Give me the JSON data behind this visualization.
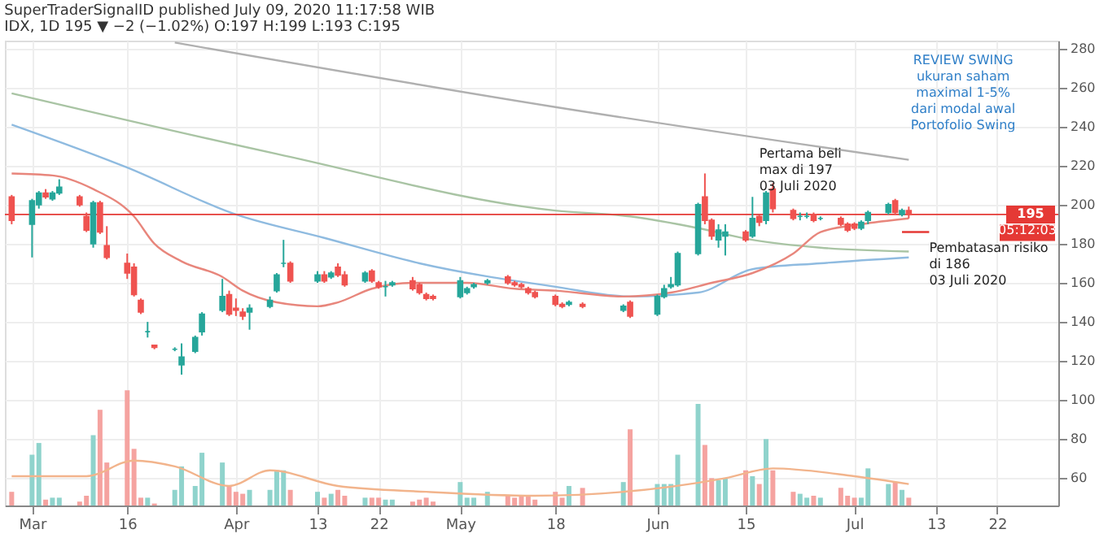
{
  "chart_data": {
    "type": "candlestick",
    "title": "SuperTraderSignalID published July 09, 2020 11:17:58 WIB",
    "subtitle": "IDX, 1D 195 ▼ −2 (−1.02%) O:197 H:199 L:193 C:195",
    "x": [
      "2020-02-28",
      "2020-03-02",
      "2020-03-03",
      "2020-03-04",
      "2020-03-05",
      "2020-03-06",
      "2020-03-09",
      "2020-03-10",
      "2020-03-11",
      "2020-03-12",
      "2020-03-13",
      "2020-03-16",
      "2020-03-17",
      "2020-03-18",
      "2020-03-19",
      "2020-03-20",
      "2020-03-23",
      "2020-03-24",
      "2020-03-26",
      "2020-03-27",
      "2020-03-30",
      "2020-03-31",
      "2020-04-01",
      "2020-04-02",
      "2020-04-03",
      "2020-04-06",
      "2020-04-07",
      "2020-04-08",
      "2020-04-09",
      "2020-04-13",
      "2020-04-14",
      "2020-04-15",
      "2020-04-16",
      "2020-04-17",
      "2020-04-20",
      "2020-04-21",
      "2020-04-22",
      "2020-04-23",
      "2020-04-24",
      "2020-04-27",
      "2020-04-28",
      "2020-04-29",
      "2020-04-30",
      "2020-05-04",
      "2020-05-05",
      "2020-05-06",
      "2020-05-08",
      "2020-05-11",
      "2020-05-12",
      "2020-05-13",
      "2020-05-14",
      "2020-05-15",
      "2020-05-18",
      "2020-05-19",
      "2020-05-20",
      "2020-05-22",
      "2020-05-28",
      "2020-05-29",
      "2020-06-02",
      "2020-06-03",
      "2020-06-04",
      "2020-06-05",
      "2020-06-08",
      "2020-06-09",
      "2020-06-10",
      "2020-06-11",
      "2020-06-12",
      "2020-06-15",
      "2020-06-16",
      "2020-06-17",
      "2020-06-18",
      "2020-06-19",
      "2020-06-22",
      "2020-06-23",
      "2020-06-24",
      "2020-06-25",
      "2020-06-26",
      "2020-06-29",
      "2020-06-30",
      "2020-07-01",
      "2020-07-02",
      "2020-07-03",
      "2020-07-06",
      "2020-07-07",
      "2020-07-08",
      "2020-07-09"
    ],
    "ohlc": [
      [
        204,
        205,
        190,
        192
      ],
      [
        190,
        203,
        173,
        202
      ],
      [
        200,
        207,
        198,
        206
      ],
      [
        206,
        208,
        203,
        204
      ],
      [
        203,
        207,
        202,
        206
      ],
      [
        206,
        213,
        205,
        209
      ],
      [
        204,
        205,
        199,
        200
      ],
      [
        194,
        196,
        186,
        187
      ],
      [
        180,
        202,
        178,
        201
      ],
      [
        201,
        202,
        185,
        186
      ],
      [
        179,
        189,
        172,
        173
      ],
      [
        170,
        175,
        162,
        165
      ],
      [
        168,
        170,
        153,
        154
      ],
      [
        151,
        152,
        144,
        145
      ],
      [
        135,
        140,
        132,
        135
      ],
      [
        128,
        128,
        126,
        127
      ],
      [
        126,
        127,
        125,
        126
      ],
      [
        118,
        129,
        113,
        122
      ],
      [
        125,
        133,
        124,
        132
      ],
      [
        135,
        145,
        133,
        144
      ],
      [
        146,
        162,
        145,
        153
      ],
      [
        154,
        156,
        143,
        144
      ],
      [
        147,
        152,
        143,
        146
      ],
      [
        145,
        147,
        141,
        143
      ],
      [
        145,
        149,
        136,
        147
      ],
      [
        148,
        153,
        147,
        151
      ],
      [
        156,
        165,
        155,
        164
      ],
      [
        170,
        182,
        168,
        170
      ],
      [
        170,
        171,
        160,
        161
      ],
      [
        161,
        166,
        160,
        164
      ],
      [
        164,
        166,
        160,
        161
      ],
      [
        163,
        166,
        162,
        165
      ],
      [
        168,
        170,
        163,
        164
      ],
      [
        164,
        166,
        158,
        159
      ],
      [
        161,
        166,
        160,
        165
      ],
      [
        166,
        167,
        160,
        161
      ],
      [
        160,
        161,
        157,
        158
      ],
      [
        158,
        161,
        153,
        158
      ],
      [
        159,
        161,
        158,
        160
      ],
      [
        161,
        163,
        156,
        157
      ],
      [
        159,
        160,
        154,
        155
      ],
      [
        154,
        155,
        151,
        152
      ],
      [
        153,
        154,
        151,
        152
      ],
      [
        153,
        163,
        152,
        161
      ],
      [
        155,
        158,
        154,
        157
      ],
      [
        158,
        160,
        157,
        159
      ],
      [
        160,
        162,
        159,
        161
      ],
      [
        163,
        164,
        159,
        160
      ],
      [
        160,
        161,
        158,
        159
      ],
      [
        159,
        160,
        157,
        158
      ],
      [
        157,
        158,
        154,
        155
      ],
      [
        155,
        156,
        152,
        153
      ],
      [
        153,
        154,
        148,
        149
      ],
      [
        149,
        150,
        147,
        148
      ],
      [
        149,
        151,
        148,
        150
      ],
      [
        149,
        150,
        147,
        148
      ],
      [
        146,
        149,
        145,
        148
      ],
      [
        150,
        151,
        142,
        143
      ],
      [
        144,
        154,
        143,
        153
      ],
      [
        153,
        159,
        152,
        157
      ],
      [
        158,
        163,
        157,
        159
      ],
      [
        159,
        176,
        158,
        175
      ],
      [
        175,
        201,
        174,
        200
      ],
      [
        204,
        216,
        190,
        192
      ],
      [
        192,
        193,
        182,
        184
      ],
      [
        182,
        190,
        178,
        187
      ],
      [
        184,
        190,
        174,
        186
      ],
      [
        186,
        187,
        181,
        182
      ],
      [
        184,
        204,
        183,
        193
      ],
      [
        194,
        195,
        189,
        191
      ],
      [
        192,
        207,
        190,
        206
      ],
      [
        208,
        211,
        196,
        198
      ],
      [
        197,
        198,
        192,
        193
      ],
      [
        194,
        196,
        192,
        194
      ],
      [
        194,
        196,
        193,
        194
      ],
      [
        195,
        196,
        191,
        192
      ],
      [
        193,
        194,
        192,
        193
      ],
      [
        193,
        194,
        189,
        190
      ],
      [
        190,
        191,
        186,
        187
      ],
      [
        190,
        191,
        187,
        188
      ],
      [
        188,
        192,
        187,
        191
      ],
      [
        192,
        197,
        190,
        196
      ],
      [
        196,
        201,
        195,
        200
      ],
      [
        202,
        203,
        195,
        196
      ],
      [
        195,
        198,
        194,
        197
      ],
      [
        197,
        199,
        193,
        195
      ]
    ],
    "series": [
      {
        "type": "bar",
        "color": "#8fd3cc",
        "values": [
          null,
          72,
          78,
          null,
          50,
          50,
          null,
          null,
          82,
          null,
          null,
          null,
          null,
          null,
          50,
          null,
          54,
          66,
          56,
          73,
          68,
          null,
          null,
          null,
          54,
          54,
          64,
          64,
          null,
          53,
          null,
          52,
          null,
          null,
          50,
          null,
          null,
          49,
          49,
          null,
          null,
          null,
          null,
          58,
          50,
          50,
          53,
          null,
          null,
          null,
          null,
          null,
          null,
          null,
          56,
          null,
          58,
          null,
          57,
          57,
          57,
          72,
          98,
          null,
          null,
          59,
          60,
          null,
          61,
          null,
          80,
          null,
          null,
          52,
          50,
          null,
          50,
          null,
          null,
          null,
          50,
          65,
          57,
          null,
          54,
          null
        ]
      },
      {
        "type": "bar",
        "color": "#f5a3a0",
        "values": [
          53,
          null,
          null,
          49,
          null,
          null,
          48,
          51,
          null,
          95,
          68,
          105,
          75,
          50,
          null,
          47,
          null,
          null,
          null,
          null,
          null,
          56,
          53,
          52,
          null,
          null,
          null,
          null,
          54,
          null,
          50,
          null,
          54,
          51,
          null,
          50,
          50,
          null,
          null,
          48,
          49,
          50,
          48,
          null,
          null,
          null,
          null,
          51,
          50,
          51,
          51,
          49,
          53,
          50,
          null,
          55,
          null,
          85,
          null,
          null,
          null,
          null,
          null,
          77,
          60,
          null,
          null,
          64,
          null,
          57,
          null,
          64,
          53,
          null,
          null,
          51,
          null,
          55,
          51,
          50,
          null,
          null,
          null,
          58,
          null,
          50
        ]
      },
      {
        "type": "line",
        "color": "#f2b48c",
        "x": [
          "2020-02-28",
          "2020-03-10",
          "2020-03-17",
          "2020-03-23",
          "2020-03-31",
          "2020-04-06",
          "2020-04-16",
          "2020-04-29",
          "2020-05-15",
          "2020-06-12",
          "2020-06-19",
          "2020-07-01",
          "2020-07-09"
        ],
        "values": [
          61,
          61,
          69,
          66,
          56,
          64,
          56,
          53,
          51,
          60,
          65,
          61,
          57
        ]
      },
      {
        "type": "line",
        "color": "#b0b0b0",
        "x": [
          "2020-03-23",
          "2020-05-18",
          "2020-07-09"
        ],
        "values": [
          283,
          250,
          223
        ]
      },
      {
        "type": "line",
        "color": "#a9c4a4",
        "x": [
          "2020-02-28",
          "2020-04-07",
          "2020-05-18",
          "2020-05-29",
          "2020-06-08",
          "2020-06-16",
          "2020-06-26",
          "2020-07-09"
        ],
        "values": [
          257,
          226,
          197,
          194,
          188,
          182,
          178,
          176
        ]
      },
      {
        "type": "line",
        "color": "#8fbbe0",
        "x": [
          "2020-02-28",
          "2020-03-16",
          "2020-04-01",
          "2020-04-14",
          "2020-04-28",
          "2020-05-18",
          "2020-05-29",
          "2020-06-08",
          "2020-06-16",
          "2020-06-26",
          "2020-07-09"
        ],
        "values": [
          241,
          219,
          195,
          183,
          170,
          158,
          153,
          155,
          167,
          170,
          173
        ]
      },
      {
        "type": "line",
        "color": "#e8867c",
        "x": [
          "2020-02-28",
          "2020-03-05",
          "2020-03-11",
          "2020-03-17",
          "2020-03-20",
          "2020-03-24",
          "2020-03-30",
          "2020-04-02",
          "2020-04-07",
          "2020-04-13",
          "2020-04-16",
          "2020-04-21",
          "2020-04-27",
          "2020-05-05",
          "2020-05-12",
          "2020-05-18",
          "2020-05-28",
          "2020-06-04",
          "2020-06-10",
          "2020-06-16",
          "2020-06-22",
          "2020-06-26",
          "2020-07-02",
          "2020-07-09"
        ],
        "values": [
          216,
          215,
          208,
          194,
          180,
          171,
          163,
          156,
          150,
          148,
          150,
          157,
          160,
          160,
          157,
          156,
          153,
          155,
          160,
          165,
          175,
          186,
          190,
          193
        ]
      },
      {
        "type": "line",
        "color": "#e53935",
        "x": [
          "2020-07-08",
          "2020-07-12"
        ],
        "values": [
          186,
          186
        ]
      }
    ],
    "ref_lines": [
      {
        "axis": "y",
        "value": 195,
        "label": "195",
        "color": "#e53935"
      }
    ],
    "annotations": [
      "REVIEW SWING\nukuran saham\nmaximal 1-5%\ndari modal awal\nPortofolio Swing",
      "Pertama beli\nmax di 197\n03 Juli 2020",
      "Pembatasan risiko\ndi 186\n03 Juli 2020",
      "05:12:03"
    ],
    "xlim": [
      "2020-02-27",
      "2020-07-31"
    ],
    "xticks": [
      {
        "value": "2020-03-02",
        "label": "Mar"
      },
      {
        "value": "2020-03-16",
        "label": "16"
      },
      {
        "value": "2020-04-01",
        "label": "Apr"
      },
      {
        "value": "2020-04-13",
        "label": "13"
      },
      {
        "value": "2020-04-22",
        "label": "22"
      },
      {
        "value": "2020-05-04",
        "label": "May"
      },
      {
        "value": "2020-05-18",
        "label": "18"
      },
      {
        "value": "2020-06-02",
        "label": "Jun"
      },
      {
        "value": "2020-06-15",
        "label": "15"
      },
      {
        "value": "2020-07-01",
        "label": "Jul"
      },
      {
        "value": "2020-07-13",
        "label": "13"
      },
      {
        "value": "2020-07-22",
        "label": "22"
      }
    ],
    "ylim": [
      46,
      284
    ],
    "yticks": [
      60,
      80,
      100,
      120,
      140,
      160,
      180,
      200,
      220,
      240,
      260,
      280
    ],
    "grid": true
  }
}
